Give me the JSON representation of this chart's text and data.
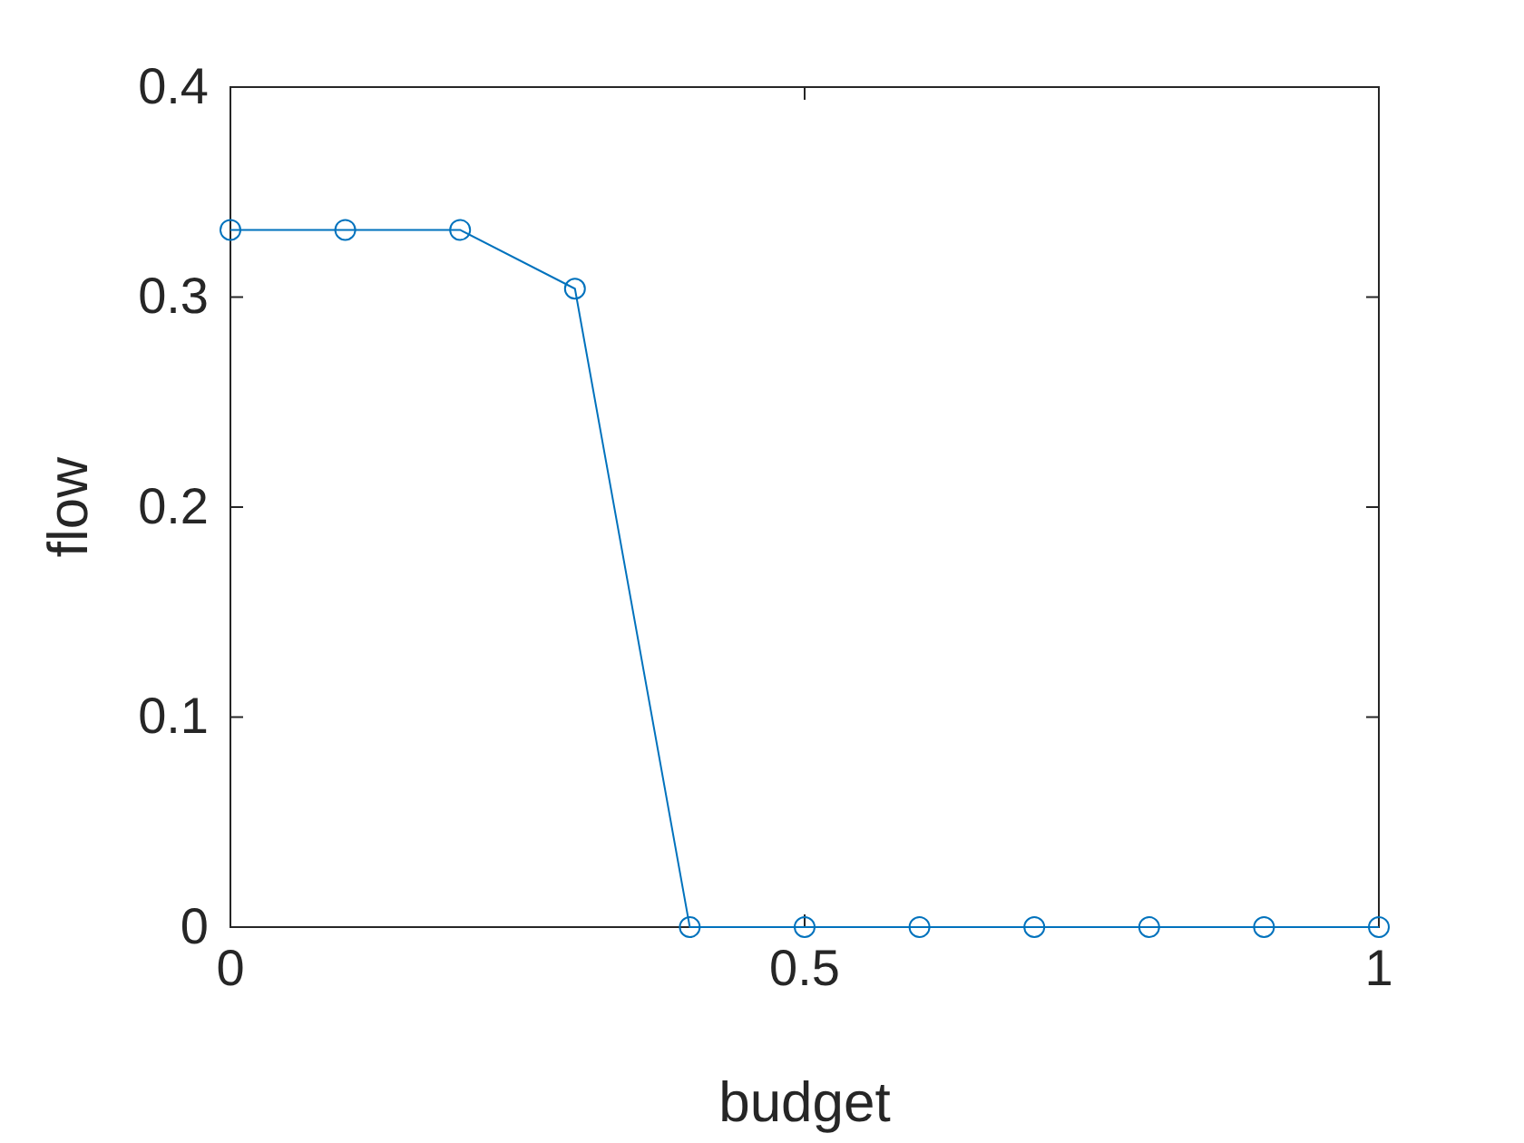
{
  "chart_data": {
    "type": "line",
    "xlabel": "budget",
    "ylabel": "flow",
    "x": [
      0,
      0.1,
      0.2,
      0.3,
      0.4,
      0.5,
      0.6,
      0.7,
      0.8,
      0.9,
      1
    ],
    "series": [
      {
        "color": "#0072bd",
        "values": [
          0.332,
          0.332,
          0.332,
          0.304,
          0,
          0,
          0,
          0,
          0,
          0,
          0
        ]
      }
    ],
    "xlim": [
      0,
      1
    ],
    "xticks": [
      0,
      0.5,
      1
    ],
    "ylim": [
      0,
      0.4
    ],
    "yticks": [
      0,
      0.1,
      0.2,
      0.3,
      0.4
    ],
    "marker": "circle",
    "line_style": "solid",
    "grid": false
  }
}
